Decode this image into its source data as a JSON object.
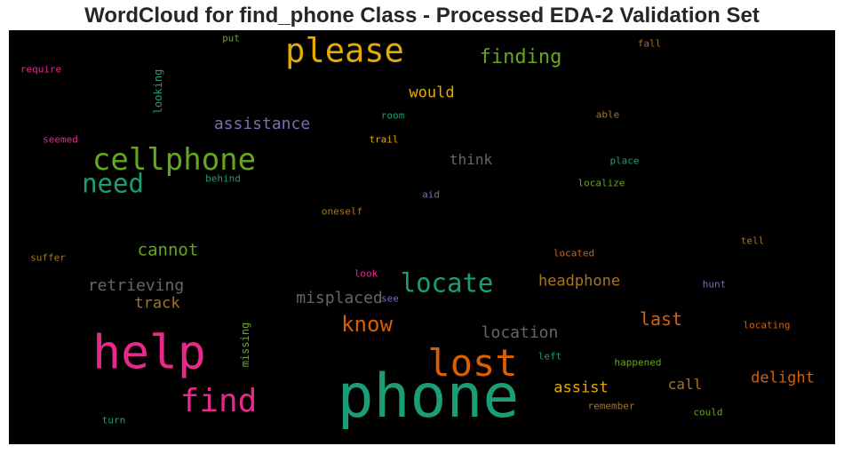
{
  "chart_data": {
    "type": "wordcloud",
    "title": "WordCloud for find_phone Class - Processed EDA-2 Validation Set",
    "background": "#000000",
    "words": [
      {
        "text": "phone",
        "color": "#1b9e77",
        "weight": 1.0
      },
      {
        "text": "help",
        "color": "#e7298a",
        "weight": 0.78
      },
      {
        "text": "lost",
        "color": "#d95f02",
        "weight": 0.62
      },
      {
        "text": "please",
        "color": "#e6ab02",
        "weight": 0.55
      },
      {
        "text": "find",
        "color": "#e7298a",
        "weight": 0.53
      },
      {
        "text": "cellphone",
        "color": "#66a61e",
        "weight": 0.5
      },
      {
        "text": "locate",
        "color": "#1b9e77",
        "weight": 0.43
      },
      {
        "text": "need",
        "color": "#1b9e77",
        "weight": 0.42
      },
      {
        "text": "know",
        "color": "#d95f02",
        "weight": 0.35
      },
      {
        "text": "finding",
        "color": "#66a61e",
        "weight": 0.33
      },
      {
        "text": "last",
        "color": "#d95f02",
        "weight": 0.3
      },
      {
        "text": "cannot",
        "color": "#66a61e",
        "weight": 0.28
      },
      {
        "text": "misplaced",
        "color": "#666666",
        "weight": 0.27
      },
      {
        "text": "retrieving",
        "color": "#666666",
        "weight": 0.27
      },
      {
        "text": "assistance",
        "color": "#7570b3",
        "weight": 0.26
      },
      {
        "text": "location",
        "color": "#666666",
        "weight": 0.26
      },
      {
        "text": "headphone",
        "color": "#a6761d",
        "weight": 0.25
      },
      {
        "text": "delight",
        "color": "#d95f02",
        "weight": 0.25
      },
      {
        "text": "would",
        "color": "#e6ab02",
        "weight": 0.25
      },
      {
        "text": "track",
        "color": "#a6761d",
        "weight": 0.25
      },
      {
        "text": "assist",
        "color": "#e6ab02",
        "weight": 0.25
      },
      {
        "text": "think",
        "color": "#666666",
        "weight": 0.24
      },
      {
        "text": "call",
        "color": "#a6761d",
        "weight": 0.24
      },
      {
        "text": "looking",
        "color": "#1b9e77",
        "weight": 0.17
      },
      {
        "text": "missing",
        "color": "#66a61e",
        "weight": 0.17
      },
      {
        "text": "require",
        "color": "#e7298a",
        "weight": 0.16
      },
      {
        "text": "seemed",
        "color": "#e7298a",
        "weight": 0.16
      },
      {
        "text": "put",
        "color": "#66a61e",
        "weight": 0.16
      },
      {
        "text": "room",
        "color": "#1b9e77",
        "weight": 0.16
      },
      {
        "text": "trail",
        "color": "#e6ab02",
        "weight": 0.16
      },
      {
        "text": "behind",
        "color": "#1b9e77",
        "weight": 0.16
      },
      {
        "text": "able",
        "color": "#a6761d",
        "weight": 0.16
      },
      {
        "text": "fall",
        "color": "#a6761d",
        "weight": 0.16
      },
      {
        "text": "place",
        "color": "#1b9e77",
        "weight": 0.16
      },
      {
        "text": "localize",
        "color": "#66a61e",
        "weight": 0.16
      },
      {
        "text": "aid",
        "color": "#7570b3",
        "weight": 0.16
      },
      {
        "text": "oneself",
        "color": "#a6761d",
        "weight": 0.16
      },
      {
        "text": "suffer",
        "color": "#a6761d",
        "weight": 0.16
      },
      {
        "text": "tell",
        "color": "#a6761d",
        "weight": 0.16
      },
      {
        "text": "located",
        "color": "#d95f02",
        "weight": 0.16
      },
      {
        "text": "look",
        "color": "#e7298a",
        "weight": 0.16
      },
      {
        "text": "see",
        "color": "#7570b3",
        "weight": 0.16
      },
      {
        "text": "hunt",
        "color": "#7570b3",
        "weight": 0.16
      },
      {
        "text": "locating",
        "color": "#d95f02",
        "weight": 0.16
      },
      {
        "text": "left",
        "color": "#1b9e77",
        "weight": 0.16
      },
      {
        "text": "happened",
        "color": "#66a61e",
        "weight": 0.16
      },
      {
        "text": "remember",
        "color": "#a6761d",
        "weight": 0.16
      },
      {
        "text": "could",
        "color": "#66a61e",
        "weight": 0.16
      },
      {
        "text": "turn",
        "color": "#1b9e77",
        "weight": 0.16
      }
    ]
  }
}
